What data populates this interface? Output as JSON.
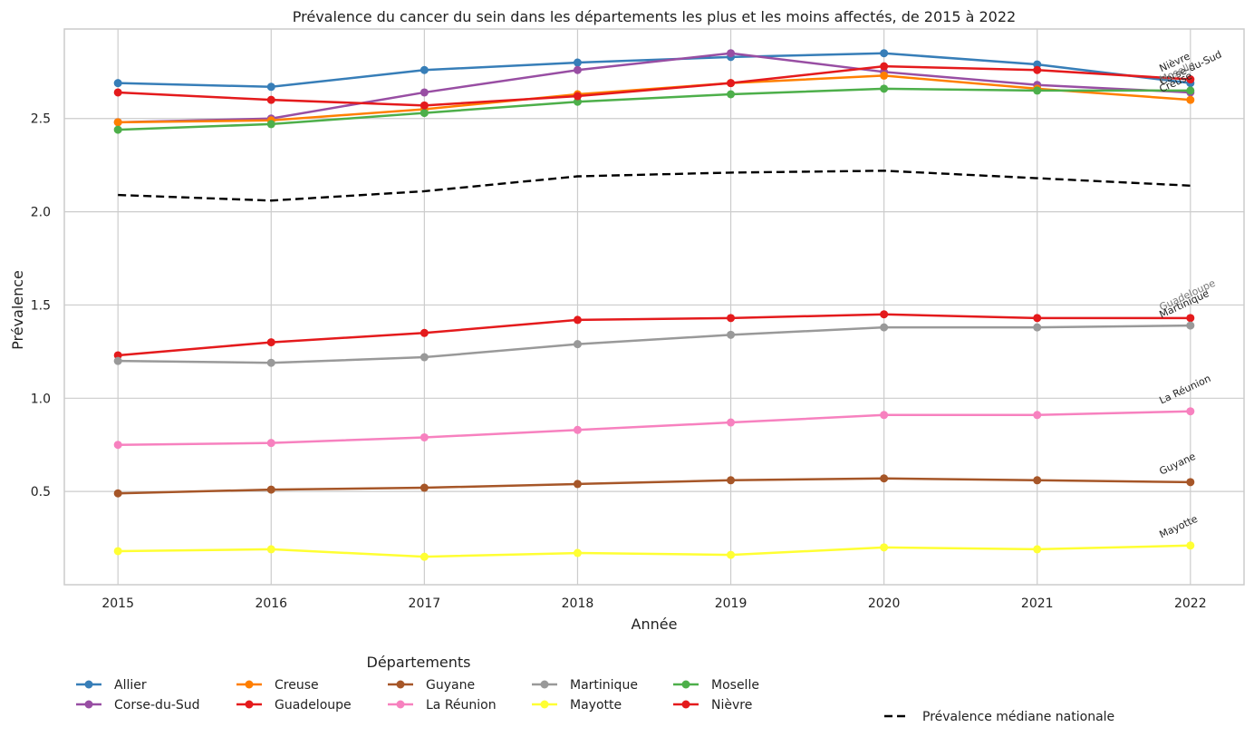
{
  "chart_data": {
    "type": "line",
    "title": "Prévalence du cancer du sein dans les départements les plus et les moins affectés, de 2015 à 2022",
    "xlabel": "Année",
    "ylabel": "Prévalence",
    "x": [
      2015,
      2016,
      2017,
      2018,
      2019,
      2020,
      2021,
      2022
    ],
    "xlim": [
      2014.65,
      2022.35
    ],
    "ylim": [
      0.0,
      2.98
    ],
    "yticks": [
      0.5,
      1.0,
      1.5,
      2.0,
      2.5
    ],
    "ytick_labels": [
      "0.5",
      "1.0",
      "1.5",
      "2.0",
      "2.5"
    ],
    "xtick_labels": [
      "2015",
      "2016",
      "2017",
      "2018",
      "2019",
      "2020",
      "2021",
      "2022"
    ],
    "grid": true,
    "legend_title": "Départements",
    "legend_placement": "bottom",
    "series": [
      {
        "name": "Allier",
        "color": "#377eb8",
        "values": [
          2.69,
          2.67,
          2.76,
          2.8,
          2.83,
          2.85,
          2.79,
          2.69
        ]
      },
      {
        "name": "Corse-du-Sud",
        "color": "#984ea3",
        "values": [
          2.48,
          2.5,
          2.64,
          2.76,
          2.85,
          2.75,
          2.68,
          2.64
        ]
      },
      {
        "name": "Creuse",
        "color": "#ff7f00",
        "values": [
          2.48,
          2.49,
          2.55,
          2.63,
          2.69,
          2.73,
          2.66,
          2.6
        ]
      },
      {
        "name": "Guadeloupe",
        "color": "#e41a1c",
        "values": [
          1.23,
          1.3,
          1.35,
          1.42,
          1.43,
          1.45,
          1.43,
          1.43
        ]
      },
      {
        "name": "Guyane",
        "color": "#a65628",
        "values": [
          0.49,
          0.51,
          0.52,
          0.54,
          0.56,
          0.57,
          0.56,
          0.55
        ]
      },
      {
        "name": "La Réunion",
        "color": "#f781bf",
        "values": [
          0.75,
          0.76,
          0.79,
          0.83,
          0.87,
          0.91,
          0.91,
          0.93
        ]
      },
      {
        "name": "Martinique",
        "color": "#999999",
        "values": [
          1.2,
          1.19,
          1.22,
          1.29,
          1.34,
          1.38,
          1.38,
          1.39
        ]
      },
      {
        "name": "Mayotte",
        "color": "#ffff33",
        "values": [
          0.18,
          0.19,
          0.15,
          0.17,
          0.16,
          0.2,
          0.19,
          0.21
        ]
      },
      {
        "name": "Moselle",
        "color": "#4daf4a",
        "values": [
          2.44,
          2.47,
          2.53,
          2.59,
          2.63,
          2.66,
          2.65,
          2.65
        ]
      },
      {
        "name": "Nièvre",
        "color": "#e41a1c",
        "values": [
          2.64,
          2.6,
          2.57,
          2.62,
          2.69,
          2.78,
          2.76,
          2.71
        ]
      }
    ],
    "median_series": {
      "name": "Prévalence médiane nationale",
      "color": "#000000",
      "values": [
        2.09,
        2.06,
        2.11,
        2.19,
        2.21,
        2.22,
        2.18,
        2.14
      ]
    },
    "end_labels": [
      {
        "text": "Nièvre",
        "color": "#222222"
      },
      {
        "text": "Corse-du-Sud",
        "color": "#222222"
      },
      {
        "text": "Moselle",
        "color": "#777777"
      },
      {
        "text": "Creuse",
        "color": "#222222"
      },
      {
        "text": "Guadeloupe",
        "color": "#777777"
      },
      {
        "text": "Martinique",
        "color": "#222222"
      },
      {
        "text": "La Réunion",
        "color": "#222222"
      },
      {
        "text": "Guyane",
        "color": "#222222"
      },
      {
        "text": "Mayotte",
        "color": "#222222"
      }
    ]
  }
}
